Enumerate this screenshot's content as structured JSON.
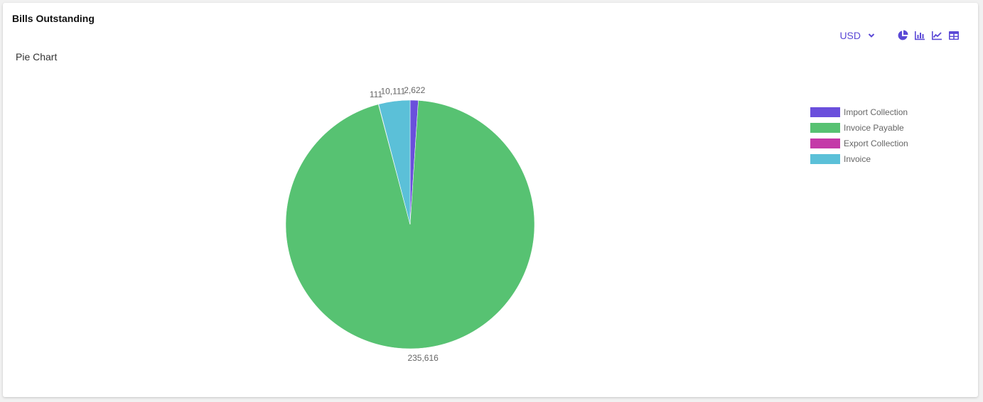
{
  "card": {
    "title": "Bills Outstanding"
  },
  "toolbar": {
    "currency": "USD",
    "icons": [
      "pie-chart-icon",
      "bar-chart-icon",
      "line-chart-icon",
      "table-icon"
    ]
  },
  "colors": {
    "accent": "#5b49d6"
  },
  "chart_data": {
    "type": "pie",
    "title": "Pie Chart",
    "legend_position": "right",
    "labels": [
      "Import Collection",
      "Invoice Payable",
      "Export Collection",
      "Invoice"
    ],
    "values": [
      2622,
      235616,
      111,
      10111
    ],
    "value_labels": [
      "2,622",
      "235,616",
      "111",
      "10,111"
    ],
    "colors": [
      "#6a4fdc",
      "#57c272",
      "#c43aa8",
      "#5bc0d8"
    ]
  }
}
